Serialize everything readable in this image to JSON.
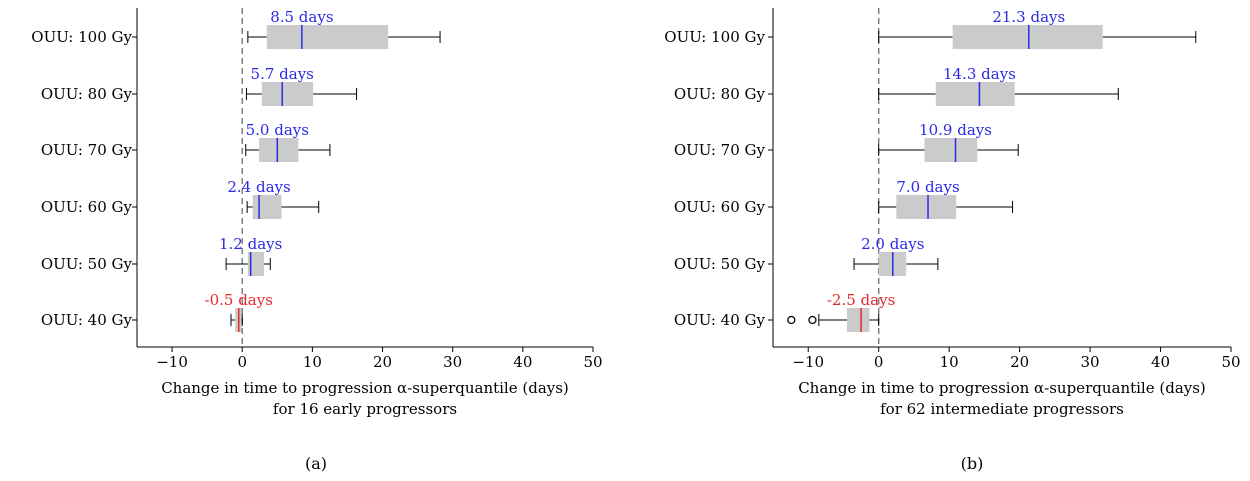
{
  "chart_data": [
    {
      "type": "box",
      "panel_label": "(a)",
      "xlabel_line1": "Change in time to progression α-superquantile (days)",
      "xlabel_line2": "for 16 early progressors",
      "xlim": [
        -15,
        50
      ],
      "xticks": [
        -10,
        0,
        10,
        20,
        30,
        40,
        50
      ],
      "tick_labels": [
        "−10",
        "0",
        "10",
        "20",
        "30",
        "40",
        "50"
      ],
      "reference_line_x": 0,
      "categories": [
        "OUU: 100 Gy",
        "OUU:  80 Gy",
        "OUU:  70 Gy",
        "OUU:  60 Gy",
        "OUU:  50 Gy",
        "OUU:  40 Gy"
      ],
      "boxes": [
        {
          "whisker_low": 0.8,
          "q1": 3.5,
          "median": 8.5,
          "q3": 20.8,
          "whisker_high": 28.2,
          "outliers": [],
          "label": "8.5 days",
          "color": "blue"
        },
        {
          "whisker_low": 0.6,
          "q1": 2.8,
          "median": 5.7,
          "q3": 10.1,
          "whisker_high": 16.3,
          "outliers": [],
          "label": "5.7 days",
          "color": "blue"
        },
        {
          "whisker_low": 0.5,
          "q1": 2.4,
          "median": 5.0,
          "q3": 8.0,
          "whisker_high": 12.5,
          "outliers": [],
          "label": "5.0 days",
          "color": "blue"
        },
        {
          "whisker_low": 0.7,
          "q1": 1.5,
          "median": 2.4,
          "q3": 5.6,
          "whisker_high": 10.9,
          "outliers": [],
          "label": "2.4 days",
          "color": "blue"
        },
        {
          "whisker_low": -2.3,
          "q1": 0.8,
          "median": 1.2,
          "q3": 3.1,
          "whisker_high": 4.0,
          "outliers": [],
          "label": "1.2 days",
          "color": "blue"
        },
        {
          "whisker_low": -1.6,
          "q1": -1.0,
          "median": -0.5,
          "q3": -0.1,
          "whisker_high": 0.0,
          "outliers": [],
          "label": "-0.5 days",
          "color": "red"
        }
      ]
    },
    {
      "type": "box",
      "panel_label": "(b)",
      "xlabel_line1": "Change in time to progression α-superquantile (days)",
      "xlabel_line2": "for 62 intermediate progressors",
      "xlim": [
        -15,
        50
      ],
      "xticks": [
        -10,
        0,
        10,
        20,
        30,
        40,
        50
      ],
      "tick_labels": [
        "−10",
        "0",
        "10",
        "20",
        "30",
        "40",
        "50"
      ],
      "reference_line_x": 0,
      "categories": [
        "OUU: 100 Gy",
        "OUU:  80 Gy",
        "OUU:  70 Gy",
        "OUU:  60 Gy",
        "OUU:  50 Gy",
        "OUU:  40 Gy"
      ],
      "boxes": [
        {
          "whisker_low": 0.0,
          "q1": 10.5,
          "median": 21.3,
          "q3": 31.8,
          "whisker_high": 45.0,
          "outliers": [],
          "label": "21.3 days",
          "color": "blue"
        },
        {
          "whisker_low": 0.0,
          "q1": 8.1,
          "median": 14.3,
          "q3": 19.3,
          "whisker_high": 34.0,
          "outliers": [],
          "label": "14.3 days",
          "color": "blue"
        },
        {
          "whisker_low": 0.0,
          "q1": 6.5,
          "median": 10.9,
          "q3": 14.0,
          "whisker_high": 19.8,
          "outliers": [],
          "label": "10.9 days",
          "color": "blue"
        },
        {
          "whisker_low": 0.0,
          "q1": 2.5,
          "median": 7.0,
          "q3": 11.0,
          "whisker_high": 19.0,
          "outliers": [],
          "label": "7.0 days",
          "color": "blue"
        },
        {
          "whisker_low": -3.5,
          "q1": 0.0,
          "median": 2.0,
          "q3": 3.9,
          "whisker_high": 8.4,
          "outliers": [],
          "label": "2.0 days",
          "color": "blue"
        },
        {
          "whisker_low": -8.5,
          "q1": -4.5,
          "median": -2.5,
          "q3": -1.3,
          "whisker_high": 0.0,
          "outliers": [
            -12.4,
            -9.4
          ],
          "label": "-2.5 days",
          "color": "red"
        }
      ]
    }
  ],
  "colors": {
    "positive": "#2a2ae6",
    "negative": "#e62a2a",
    "box_fill": "#cbcbcb",
    "reference_line": "#808080",
    "axis": "#000000"
  }
}
